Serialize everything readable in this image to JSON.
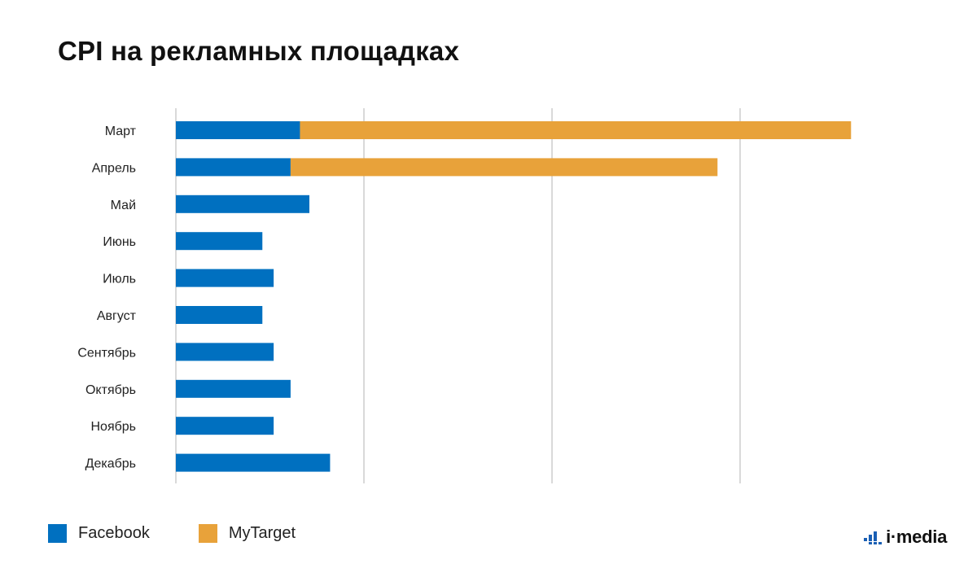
{
  "title": "CPI на рекламных площадках",
  "chart_data": {
    "type": "bar",
    "orientation": "horizontal",
    "stacked": true,
    "categories": [
      "Март",
      "Апрель",
      "Май",
      "Июнь",
      "Июль",
      "Август",
      "Сентябрь",
      "Октябрь",
      "Ноябрь",
      "Декабрь"
    ],
    "series": [
      {
        "name": "Facebook",
        "color": "#0070c0",
        "values": [
          0.66,
          0.61,
          0.71,
          0.46,
          0.52,
          0.46,
          0.52,
          0.61,
          0.52,
          0.82
        ]
      },
      {
        "name": "MyTarget",
        "color": "#e8a23a",
        "values": [
          2.93,
          2.27,
          0,
          0,
          0,
          0,
          0,
          0,
          0,
          0
        ]
      }
    ],
    "xlim": [
      0,
      4
    ],
    "gridlines": [
      0,
      1,
      2,
      3
    ],
    "grid": true,
    "axis_tick_labels": false,
    "legend_position": "bottom-left"
  },
  "logo": {
    "text": "i·media",
    "icon": "bar-chart-logo-icon"
  }
}
